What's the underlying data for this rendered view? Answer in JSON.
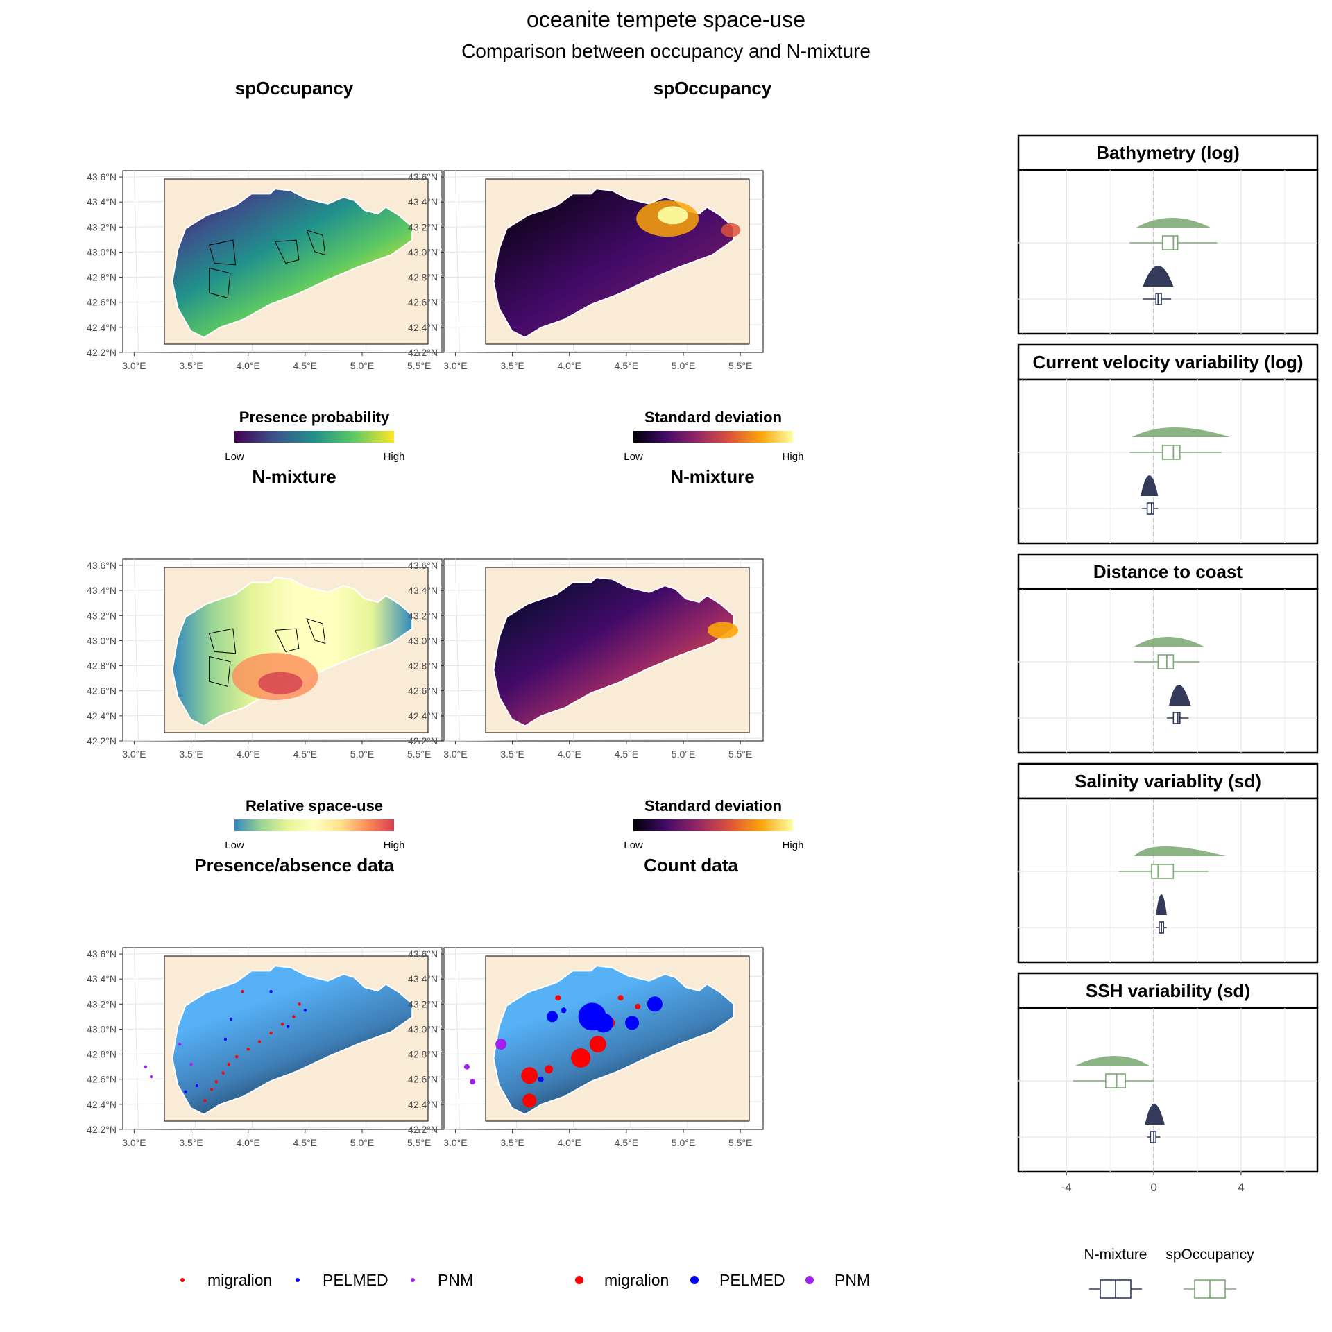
{
  "title": "oceanite tempete space-use",
  "subtitle": "Comparison between occupancy and N-mixture",
  "map_axes": {
    "x_ticks": [
      "3.0°E",
      "3.5°E",
      "4.0°E",
      "4.5°E",
      "5.0°E",
      "5.5°E"
    ],
    "y_ticks": [
      "43.6°N",
      "43.4°N",
      "43.2°N",
      "43.0°N",
      "42.8°N",
      "42.6°N",
      "42.4°N",
      "42.2°N"
    ],
    "xlim": [
      2.9,
      5.7
    ],
    "ylim": [
      42.2,
      43.65
    ]
  },
  "maps": [
    {
      "title": "spOccupancy",
      "legend_title": "Presence probability",
      "legend_low": "Low",
      "legend_high": "High",
      "palette": [
        "#440154",
        "#3b528b",
        "#21918c",
        "#5ec962",
        "#fde725"
      ]
    },
    {
      "title": "spOccupancy",
      "legend_title": "Standard deviation",
      "legend_low": "Low",
      "legend_high": "High",
      "palette": [
        "#000004",
        "#420a68",
        "#932667",
        "#dd513a",
        "#fca50a",
        "#fcffa4"
      ]
    },
    {
      "title": "N-mixture",
      "legend_title": "Relative space-use",
      "legend_low": "Low",
      "legend_high": "High",
      "palette": [
        "#3288bd",
        "#99d594",
        "#e6f598",
        "#ffffbf",
        "#fee08b",
        "#fc8d59",
        "#d53e4f"
      ]
    },
    {
      "title": "N-mixture",
      "legend_title": "Standard deviation",
      "legend_low": "Low",
      "legend_high": "High",
      "palette": [
        "#000004",
        "#420a68",
        "#932667",
        "#dd513a",
        "#fca50a",
        "#fcffa4"
      ]
    },
    {
      "title": "Presence/absence data"
    },
    {
      "title": "Count data"
    }
  ],
  "data_legend": {
    "items": [
      {
        "label": "migralion",
        "color": "#ff0000"
      },
      {
        "label": "PELMED",
        "color": "#0000ff"
      },
      {
        "label": "PNM",
        "color": "#a020f0"
      }
    ]
  },
  "colors": {
    "land": "#faebd7",
    "sea_light": "#56b1f7",
    "sea_dark": "#132b43",
    "nmix": "#343a5a",
    "spocc": "#7fab77"
  },
  "chart_data": {
    "type": "boxplot",
    "title": "oceanite tempete space-use",
    "subtitle": "Comparison between occupancy and N-mixture",
    "xlim": [
      -6.2,
      7.5
    ],
    "x_ticks": [
      -4,
      0,
      4
    ],
    "reference_line": 0,
    "legend": [
      "N-mixture",
      "spOccupancy"
    ],
    "panels": [
      {
        "title": "Bathymetry (log)",
        "series": [
          {
            "name": "spOccupancy",
            "whisker": [
              -1.1,
              2.9
            ],
            "box": [
              0.4,
              0.9,
              1.1
            ],
            "density_range": [
              -0.8,
              2.6
            ],
            "density_mode": 0.8
          },
          {
            "name": "N-mixture",
            "whisker": [
              -0.5,
              0.8
            ],
            "box": [
              0.1,
              0.2,
              0.35
            ],
            "density_range": [
              -0.5,
              0.9
            ],
            "density_mode": 0.2
          }
        ]
      },
      {
        "title": "Current velocity variability (log)",
        "series": [
          {
            "name": "spOccupancy",
            "whisker": [
              -1.1,
              3.1
            ],
            "box": [
              0.4,
              0.9,
              1.2
            ],
            "density_range": [
              -1.0,
              3.5
            ],
            "density_mode": 0.7
          },
          {
            "name": "N-mixture",
            "whisker": [
              -0.55,
              0.2
            ],
            "box": [
              -0.3,
              -0.1,
              0.0
            ],
            "density_range": [
              -0.6,
              0.2
            ],
            "density_mode": -0.2
          }
        ]
      },
      {
        "title": "Distance to coast",
        "series": [
          {
            "name": "spOccupancy",
            "whisker": [
              -0.9,
              2.1
            ],
            "box": [
              0.2,
              0.6,
              0.9
            ],
            "density_range": [
              -0.9,
              2.3
            ],
            "density_mode": 0.6
          },
          {
            "name": "N-mixture",
            "whisker": [
              0.6,
              1.6
            ],
            "box": [
              0.9,
              1.1,
              1.2
            ],
            "density_range": [
              0.7,
              1.7
            ],
            "density_mode": 1.1
          }
        ]
      },
      {
        "title": "Salinity variablity (sd)",
        "series": [
          {
            "name": "spOccupancy",
            "whisker": [
              -1.6,
              2.5
            ],
            "box": [
              -0.1,
              0.2,
              0.9
            ],
            "density_range": [
              -0.9,
              3.3
            ],
            "density_mode": -0.1
          },
          {
            "name": "N-mixture",
            "whisker": [
              0.1,
              0.6
            ],
            "box": [
              0.25,
              0.35,
              0.45
            ],
            "density_range": [
              0.1,
              0.6
            ],
            "density_mode": 0.35
          }
        ]
      },
      {
        "title": "SSH variability (sd)",
        "series": [
          {
            "name": "spOccupancy",
            "whisker": [
              -3.7,
              0.0
            ],
            "box": [
              -2.2,
              -1.7,
              -1.3
            ],
            "density_range": [
              -3.6,
              -0.2
            ],
            "density_mode": -1.7
          },
          {
            "name": "N-mixture",
            "whisker": [
              -0.3,
              0.3
            ],
            "box": [
              -0.15,
              0.0,
              0.1
            ],
            "density_range": [
              -0.4,
              0.5
            ],
            "density_mode": 0.0
          }
        ]
      }
    ]
  }
}
